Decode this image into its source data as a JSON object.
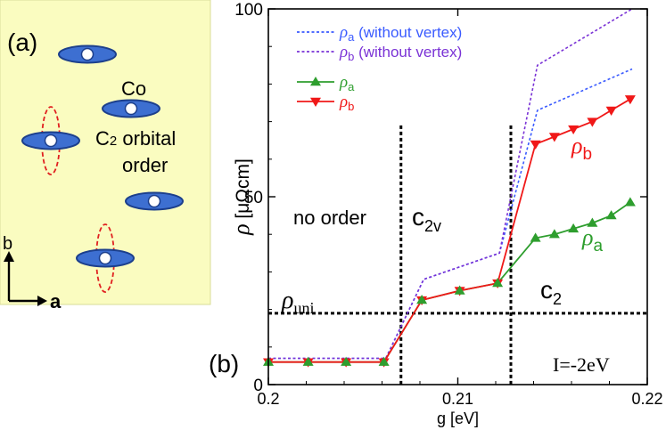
{
  "panel_a": {
    "label": "(a)",
    "co_label": "Co",
    "orbital_label_prefix": "C",
    "orbital_label_sub": "2",
    "orbital_label_line1": " orbital",
    "orbital_label_line2": "order",
    "axis_b": "b",
    "axis_a": "a",
    "background_color": "#fafcc0",
    "ellipse_color": "#3d6fd1",
    "dashed_orbital_color": "#e02020"
  },
  "chart_data": {
    "type": "line",
    "panel_label": "(b)",
    "xlabel": "g [eV]",
    "ylabel_symbol": "ρ",
    "ylabel_unit": " [μΩcm]",
    "xlim": [
      0.2,
      0.22
    ],
    "ylim": [
      0,
      100
    ],
    "xticks": [
      0.2,
      0.21,
      0.22
    ],
    "xtick_labels": [
      "0.2",
      "0.21",
      "0.22"
    ],
    "yticks": [
      0,
      50,
      100
    ],
    "ytick_labels": [
      "0",
      "50",
      "100"
    ],
    "grid": false,
    "legend_position": "top-left",
    "series": [
      {
        "id": "rho_a_nv",
        "name_symbol": "ρ",
        "name_sub": "a",
        "name_rest": " (without vertex)",
        "color": "#3b5bff",
        "style": "dotted",
        "marker": "none",
        "x": [
          0.2,
          0.2062,
          0.2082,
          0.2122,
          0.2142,
          0.2192
        ],
        "y": [
          7,
          7,
          28,
          35,
          73,
          84
        ]
      },
      {
        "id": "rho_b_nv",
        "name_symbol": "ρ",
        "name_sub": "b",
        "name_rest": " (without vertex)",
        "color": "#7a33d6",
        "style": "dotted",
        "marker": "none",
        "x": [
          0.2,
          0.2062,
          0.2082,
          0.2122,
          0.2142,
          0.2192
        ],
        "y": [
          7,
          7,
          28,
          35,
          85,
          100
        ]
      },
      {
        "id": "rho_a",
        "name_symbol": "ρ",
        "name_sub": "a",
        "name_rest": "",
        "color": "#2e9e2e",
        "style": "solid",
        "marker": "triangle-up",
        "x": [
          0.2,
          0.2021,
          0.2041,
          0.2061,
          0.2081,
          0.2101,
          0.2121,
          0.2141,
          0.2151,
          0.2161,
          0.2171,
          0.2181,
          0.2191
        ],
        "y": [
          6,
          6,
          6,
          6,
          22.5,
          25,
          27,
          39,
          40,
          41.5,
          43,
          45,
          48.5
        ]
      },
      {
        "id": "rho_b",
        "name_symbol": "ρ",
        "name_sub": "b",
        "name_rest": "",
        "color": "#f01818",
        "style": "solid",
        "marker": "triangle-down",
        "x": [
          0.2,
          0.2021,
          0.2041,
          0.2061,
          0.2081,
          0.2101,
          0.2121,
          0.2141,
          0.2151,
          0.2161,
          0.2171,
          0.2181,
          0.2191
        ],
        "y": [
          6,
          6,
          6,
          6,
          22.5,
          25,
          27,
          64,
          66,
          68,
          70,
          73,
          76
        ]
      }
    ],
    "reference_lines": [
      {
        "id": "rho_uni",
        "orientation": "horizontal",
        "value": 19
      },
      {
        "id": "boundary_1",
        "orientation": "vertical",
        "value": 0.207
      },
      {
        "id": "boundary_2",
        "orientation": "vertical",
        "value": 0.2128
      }
    ],
    "annotations": {
      "region_no_order": "no order",
      "region_c2v_main": "c",
      "region_c2v_sub": "2v",
      "region_c2_main": "c",
      "region_c2_sub": "2",
      "rho_uni_symbol": "ρ",
      "rho_uni_sub": "uni",
      "curve_label_b_symbol": "ρ",
      "curve_label_b_sub": "b",
      "curve_label_a_symbol": "ρ",
      "curve_label_a_sub": "a",
      "interaction_label": "I=-2eV"
    }
  }
}
